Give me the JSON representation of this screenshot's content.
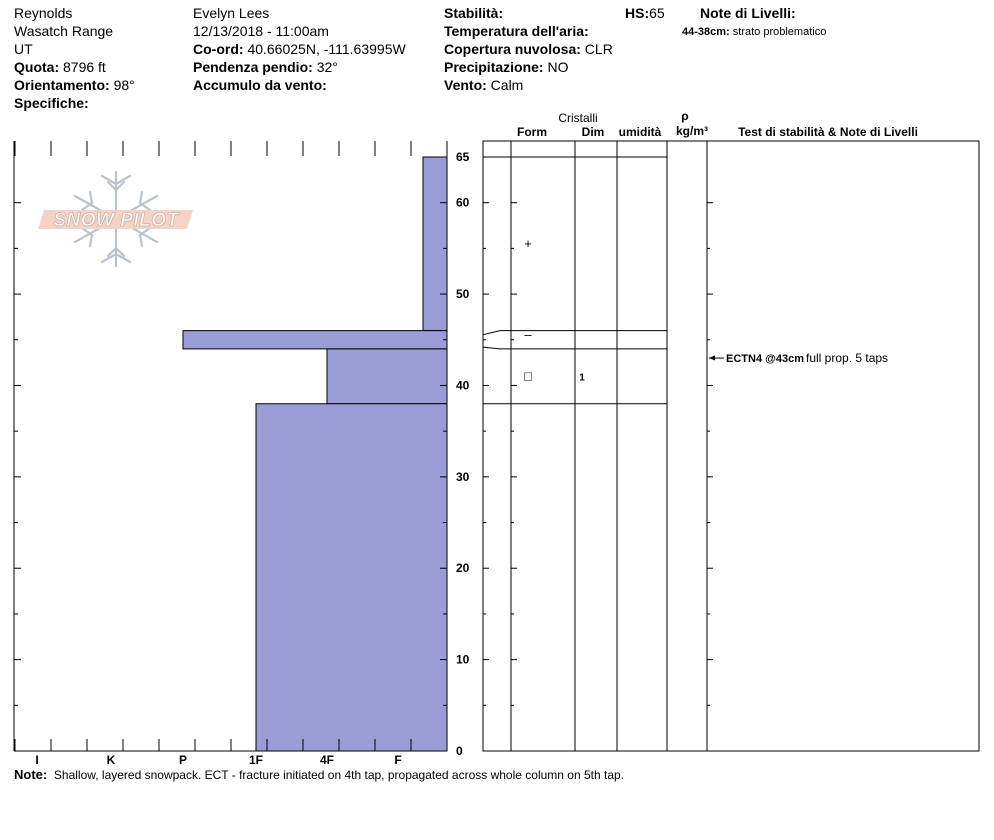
{
  "header": {
    "location": "Reynolds",
    "range": "Wasatch Range",
    "state": "UT",
    "elevation_label": "Quota:",
    "elevation_value": "8796 ft",
    "aspect_label": "Orientamento:",
    "aspect_value": "98°",
    "specifics_label": "Specifiche:",
    "observer": "Evelyn Lees",
    "datetime": "12/13/2018 - 11:00am",
    "coord_label": "Co-ord:",
    "coord_value": "40.66025N, -111.63995W",
    "slope_label": "Pendenza pendio:",
    "slope_value": "32°",
    "wind_loading_label": "Accumulo da vento:",
    "stability_label": "Stabilità:",
    "air_temp_label": "Temperatura dell'aria:",
    "cloud_label": "Copertura nuvolosa:",
    "cloud_value": "CLR",
    "precip_label": "Precipitazione:",
    "precip_value": "NO",
    "wind_label": "Vento:",
    "wind_value": "Calm",
    "hs_label": "HS:",
    "hs_value": "65",
    "layer_notes_label": "Note di Livelli:",
    "layer_note_range": "44-38cm:",
    "layer_note_text": "strato problematico"
  },
  "table_headers": {
    "crystals": "Cristalli",
    "form": "Form",
    "size": "Dim",
    "moisture": "umidità",
    "rho": "ρ",
    "density_unit": "kg/m³",
    "stability_tests": "Test di stabilità & Note di Livelli"
  },
  "logo_text": "SNOW PILOT",
  "note": {
    "label": "Note:",
    "text": "Shallow, layered snowpack.  ECT - fracture initiated on 4th tap, propagated across whole column on 5th tap."
  },
  "chart_data": {
    "type": "snow-profile",
    "y_unit": "cm",
    "ylim": [
      0,
      65
    ],
    "y_ticks": [
      0,
      10,
      20,
      30,
      40,
      50,
      60,
      65
    ],
    "hardness_scale": [
      "I",
      "K",
      "P",
      "1F",
      "4F",
      "F"
    ],
    "hardness_layers": [
      {
        "top": 65,
        "bottom": 46,
        "hardness": "F+"
      },
      {
        "top": 46,
        "bottom": 44,
        "hardness": "P"
      },
      {
        "top": 44,
        "bottom": 38,
        "hardness": "4F"
      },
      {
        "top": 38,
        "bottom": 0,
        "hardness": "1F"
      }
    ],
    "layer_boundaries": [
      65,
      46,
      44,
      38
    ],
    "grain_symbols": [
      {
        "depth": 55.5,
        "symbol": "+"
      },
      {
        "depth": 45.5,
        "symbol": "–"
      },
      {
        "depth": 41,
        "symbol": "□"
      }
    ],
    "grain_sizes": [
      {
        "depth": 41,
        "value": "1"
      }
    ],
    "stability_tests": [
      {
        "depth": 43,
        "code": "ECTN4 @43cm",
        "comment": "full prop. 5 taps"
      }
    ],
    "colors": {
      "fill": "#9b9bd6",
      "line": "#000000"
    }
  }
}
